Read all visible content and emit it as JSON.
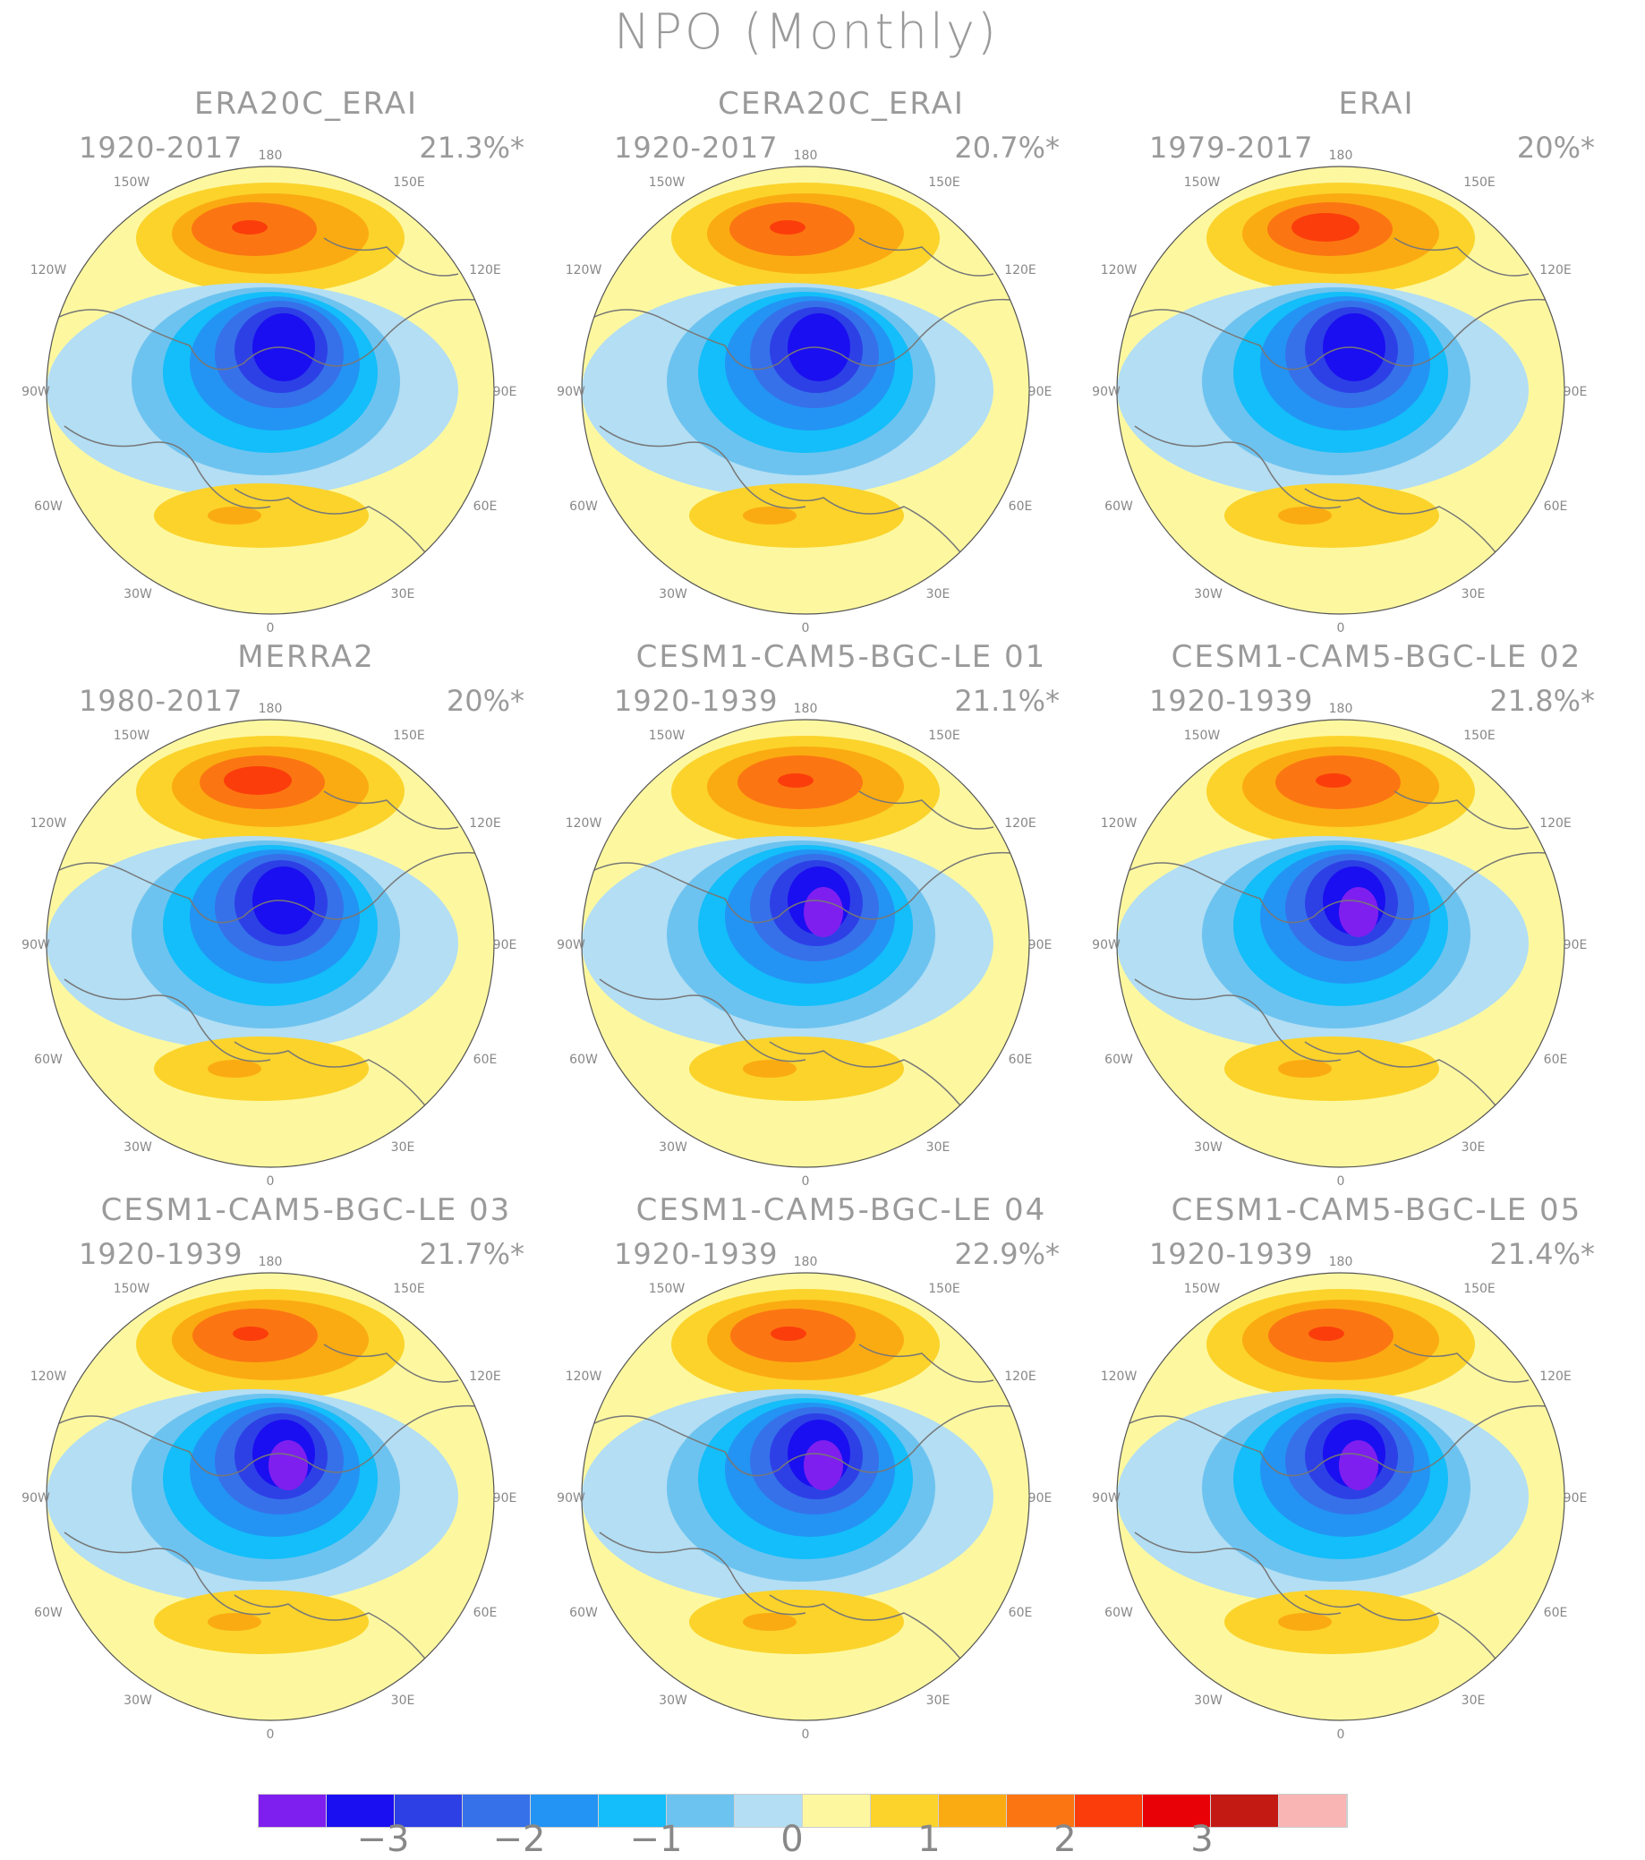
{
  "title": "NPO (Monthly)",
  "colors": {
    "levels": [
      "#7f1fef",
      "#1a0ff0",
      "#2d40e6",
      "#3671ea",
      "#2394f4",
      "#13befa",
      "#6dc3ef",
      "#b3def4",
      "#fdf8a0",
      "#fbd32b",
      "#fbab12",
      "#fb7612",
      "#fb3d0b",
      "#e80207",
      "#c41a14",
      "#f9b4b4"
    ],
    "land_outline": "#777777",
    "circle_outline": "#555555"
  },
  "longitude_labels": [
    "180",
    "150W",
    "150E",
    "120W",
    "120E",
    "90W",
    "90E",
    "60W",
    "60E",
    "30W",
    "30E",
    "0"
  ],
  "panels": [
    {
      "id": "era20c-erai",
      "name": "ERA20C_ERAI",
      "period": "1920-2017",
      "percent": "21.3%*"
    },
    {
      "id": "cera20c-erai",
      "name": "CERA20C_ERAI",
      "period": "1920-2017",
      "percent": "20.7%*"
    },
    {
      "id": "erai",
      "name": "ERAI",
      "period": "1979-2017",
      "percent": "20%*"
    },
    {
      "id": "merra2",
      "name": "MERRA2",
      "period": "1980-2017",
      "percent": "20%*"
    },
    {
      "id": "cesm-01",
      "name": "CESM1-CAM5-BGC-LE 01",
      "period": "1920-1939",
      "percent": "21.1%*"
    },
    {
      "id": "cesm-02",
      "name": "CESM1-CAM5-BGC-LE 02",
      "period": "1920-1939",
      "percent": "21.8%*"
    },
    {
      "id": "cesm-03",
      "name": "CESM1-CAM5-BGC-LE 03",
      "period": "1920-1939",
      "percent": "21.7%*"
    },
    {
      "id": "cesm-04",
      "name": "CESM1-CAM5-BGC-LE 04",
      "period": "1920-1939",
      "percent": "22.9%*"
    },
    {
      "id": "cesm-05",
      "name": "CESM1-CAM5-BGC-LE 05",
      "period": "1920-1939",
      "percent": "21.4%*"
    }
  ],
  "legend": {
    "tick_labels": [
      "−3",
      "−2",
      "−1",
      "0",
      "1",
      "2",
      "3"
    ]
  }
}
